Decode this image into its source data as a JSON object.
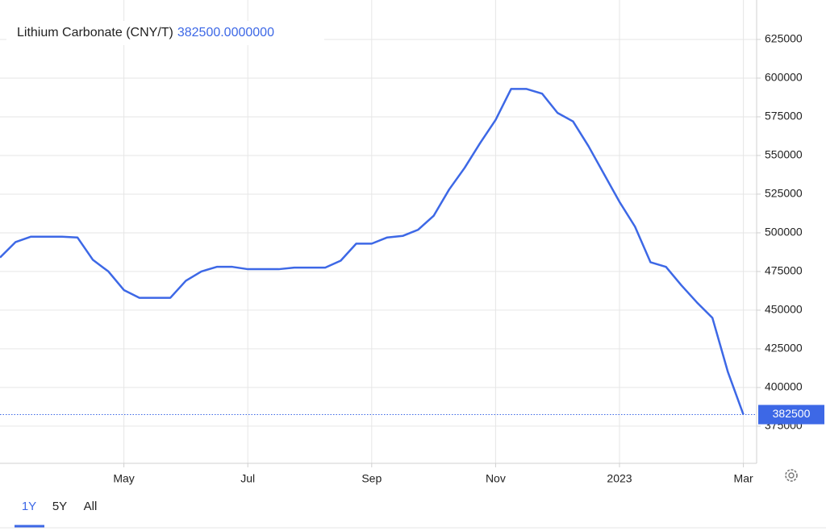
{
  "chart_data": {
    "type": "line",
    "title": "Lithium Carbonate (CNY/T)",
    "current_label": "382500.0000000",
    "current_value": 382500,
    "categories": [
      null,
      null,
      null,
      null,
      null,
      null,
      null,
      null,
      "May",
      null,
      null,
      null,
      null,
      null,
      null,
      null,
      "Jul",
      null,
      null,
      null,
      null,
      null,
      null,
      null,
      "Sep",
      null,
      null,
      null,
      null,
      null,
      null,
      null,
      "Nov",
      null,
      null,
      null,
      null,
      null,
      null,
      null,
      "2023",
      null,
      null,
      null,
      null,
      null,
      null,
      null,
      "Mar"
    ],
    "series": [
      {
        "name": "Lithium Carbonate",
        "color": "#3d68e6",
        "values": [
          484000,
          494000,
          497500,
          497500,
          497500,
          497000,
          482500,
          475000,
          463000,
          458000,
          458000,
          458000,
          469000,
          475000,
          478000,
          478000,
          476500,
          476500,
          476500,
          477500,
          477500,
          477500,
          482000,
          493000,
          493000,
          497000,
          498000,
          502000,
          511000,
          528000,
          542000,
          558000,
          573000,
          593000,
          593000,
          590000,
          577500,
          572000,
          556000,
          538000,
          520000,
          504000,
          481000,
          478000,
          466000,
          455000,
          445000,
          410000,
          382500
        ]
      }
    ],
    "ylim": [
      351000,
      650500
    ],
    "yticks": [
      375000,
      400000,
      425000,
      450000,
      475000,
      500000,
      525000,
      550000,
      575000,
      600000,
      625000
    ],
    "grid": true,
    "ranges": [
      "1Y",
      "5Y",
      "All"
    ]
  }
}
